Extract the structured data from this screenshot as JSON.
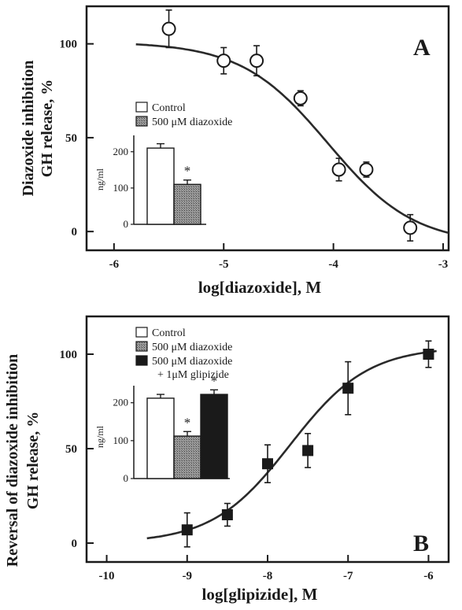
{
  "chart_data": [
    {
      "type": "scatter",
      "panel_label": "A",
      "ylabel_line1": "Diazoxide inhibition",
      "ylabel_line2": "GH release, %",
      "xlabel": "log[diazoxide], M",
      "xlim": [
        -6.25,
        -2.95
      ],
      "ylim": [
        -10,
        120
      ],
      "x_ticks": [
        -6,
        -5,
        -4,
        -3
      ],
      "x_tick_labels": [
        "-6",
        "-5",
        "-4",
        "-3"
      ],
      "y_ticks": [
        0,
        50,
        100
      ],
      "y_tick_labels": [
        "0",
        "50",
        "100"
      ],
      "marker": "open-circle",
      "points": [
        {
          "x": -5.5,
          "y": 108,
          "err": 10
        },
        {
          "x": -5.0,
          "y": 91,
          "err": 7
        },
        {
          "x": -4.7,
          "y": 91,
          "err": 8
        },
        {
          "x": -4.3,
          "y": 71,
          "err": 4
        },
        {
          "x": -3.95,
          "y": 33,
          "err": 6
        },
        {
          "x": -3.7,
          "y": 33,
          "err": 4
        },
        {
          "x": -3.3,
          "y": 2,
          "err": 7
        }
      ],
      "fit_curve": {
        "top": 101,
        "bottom": -7,
        "logEC50": -4.05,
        "hill": 1.1,
        "x_from": -5.8,
        "x_to": -2.95
      },
      "inset": {
        "ylabel": "ng/ml",
        "y_ticks": [
          0,
          100,
          200
        ],
        "y_tick_labels": [
          "0",
          "100",
          "200"
        ],
        "ylim": [
          0,
          245
        ],
        "legend": [
          "Control",
          "500 μM diazoxide"
        ],
        "bars": [
          {
            "value": 210,
            "err": 12,
            "style": "open",
            "star": ""
          },
          {
            "value": 110,
            "err": 12,
            "style": "hatched",
            "star": "*"
          }
        ]
      }
    },
    {
      "type": "scatter",
      "panel_label": "B",
      "ylabel_line1": "Reversal of diazoxide inhibition",
      "ylabel_line2": "GH release, %",
      "xlabel": "log[glipizide], M",
      "xlim": [
        -10.25,
        -5.75
      ],
      "ylim": [
        -10,
        120
      ],
      "x_ticks": [
        -10,
        -9,
        -8,
        -7,
        -6
      ],
      "x_tick_labels": [
        "-10",
        "-9",
        "-8",
        "-7",
        "-6"
      ],
      "y_ticks": [
        0,
        50,
        100
      ],
      "y_tick_labels": [
        "0",
        "50",
        "100"
      ],
      "marker": "filled-square",
      "points": [
        {
          "x": -9.0,
          "y": 7,
          "err": 9
        },
        {
          "x": -8.5,
          "y": 15,
          "err": 6
        },
        {
          "x": -8.0,
          "y": 42,
          "err": 10
        },
        {
          "x": -7.5,
          "y": 49,
          "err": 9
        },
        {
          "x": -7.0,
          "y": 82,
          "err": 14
        },
        {
          "x": -6.0,
          "y": 100,
          "err": 7
        }
      ],
      "fit_curve": {
        "top": 104,
        "bottom": 0,
        "logEC50": -7.72,
        "hill": 0.9,
        "x_from": -9.5,
        "x_to": -5.9
      },
      "inset": {
        "ylabel": "ng/ml",
        "y_ticks": [
          0,
          100,
          200
        ],
        "y_tick_labels": [
          "0",
          "100",
          "200"
        ],
        "ylim": [
          0,
          245
        ],
        "legend": [
          "Control",
          "500 μM diazoxide",
          "500 μM diazoxide",
          "+ 1μM glipizide"
        ],
        "bars": [
          {
            "value": 212,
            "err": 10,
            "style": "open",
            "star": ""
          },
          {
            "value": 112,
            "err": 12,
            "style": "hatched",
            "star": "*"
          },
          {
            "value": 222,
            "err": 12,
            "style": "filled",
            "star": "*"
          }
        ]
      }
    }
  ]
}
